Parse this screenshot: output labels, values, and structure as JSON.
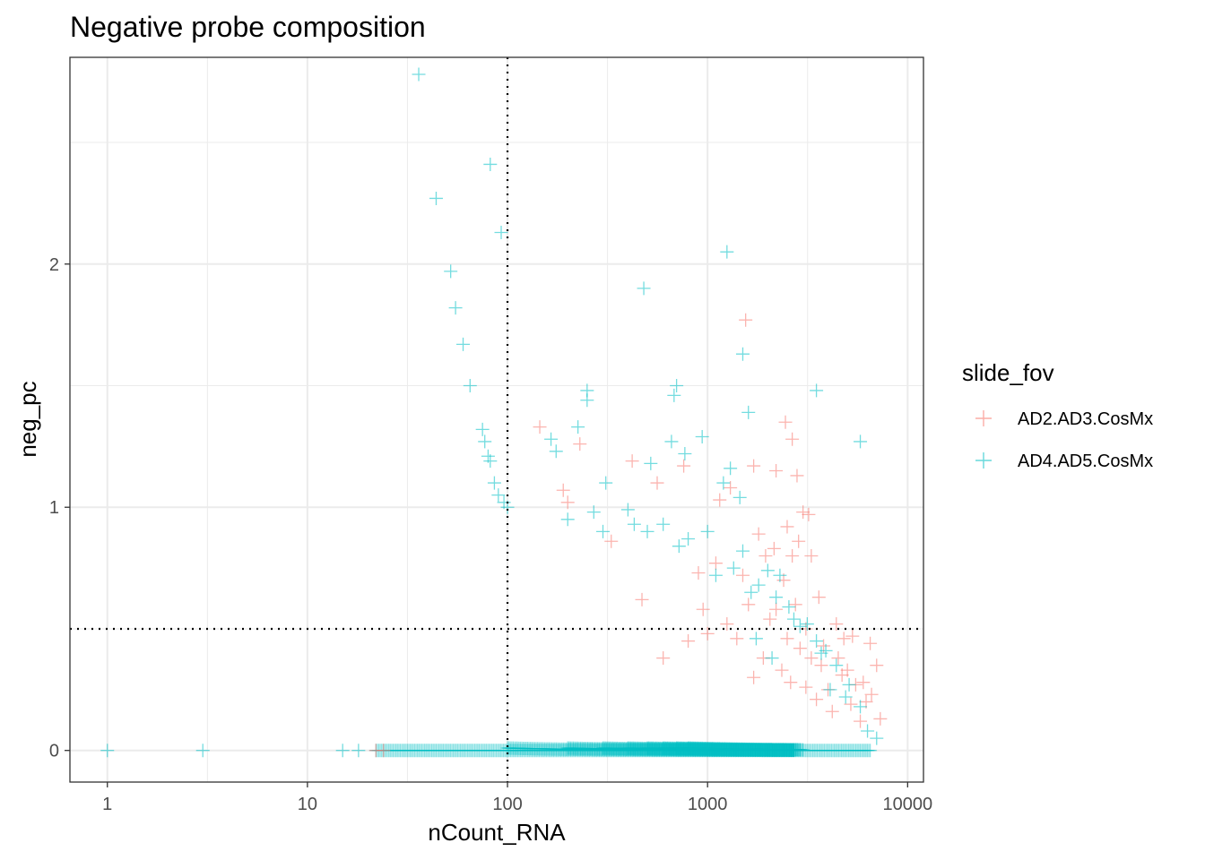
{
  "chart_data": {
    "type": "scatter",
    "title": "Negative probe composition",
    "xlabel": "nCount_RNA",
    "ylabel": "neg_pc",
    "x_scale": "log10",
    "xlim": [
      0.65,
      12000
    ],
    "ylim": [
      -0.13,
      2.85
    ],
    "x_ticks": [
      1,
      10,
      100,
      1000,
      10000
    ],
    "x_tick_labels": [
      "1",
      "10",
      "100",
      "1000",
      "10000"
    ],
    "y_ticks": [
      0,
      1,
      2
    ],
    "y_tick_labels": [
      "0",
      "1",
      "2"
    ],
    "grid": true,
    "marker": "plus",
    "reference_lines": {
      "vertical_x": 100,
      "horizontal_y": 0.5,
      "style": "dotted"
    },
    "legend": {
      "title": "slide_fov",
      "position": "right",
      "entries": [
        {
          "name": "AD2.AD3.CosMx",
          "color": "#F8766D"
        },
        {
          "name": "AD4.AD5.CosMx",
          "color": "#00BFC4"
        }
      ]
    },
    "series": [
      {
        "name": "AD2.AD3.CosMx",
        "color": "#F8766D",
        "points": [
          [
            22,
            0
          ],
          [
            24,
            0
          ],
          [
            1550,
            1.77
          ],
          [
            2450,
            1.35
          ],
          [
            2650,
            1.28
          ],
          [
            145,
            1.33
          ],
          [
            230,
            1.26
          ],
          [
            420,
            1.19
          ],
          [
            560,
            1.1
          ],
          [
            760,
            1.17
          ],
          [
            1700,
            1.17
          ],
          [
            2200,
            1.15
          ],
          [
            2800,
            1.13
          ],
          [
            1150,
            1.03
          ],
          [
            1300,
            1.08
          ],
          [
            3200,
            0.97
          ],
          [
            3000,
            0.98
          ],
          [
            2500,
            0.92
          ],
          [
            2850,
            0.86
          ],
          [
            1800,
            0.89
          ],
          [
            1950,
            0.8
          ],
          [
            2150,
            0.83
          ],
          [
            2650,
            0.8
          ],
          [
            3300,
            0.8
          ],
          [
            1100,
            0.77
          ],
          [
            900,
            0.73
          ],
          [
            1500,
            0.72
          ],
          [
            2400,
            0.7
          ],
          [
            3600,
            0.63
          ],
          [
            2750,
            0.6
          ],
          [
            4400,
            0.52
          ],
          [
            2050,
            0.54
          ],
          [
            3100,
            0.5
          ],
          [
            4800,
            0.46
          ],
          [
            5300,
            0.47
          ],
          [
            6500,
            0.44
          ],
          [
            7000,
            0.35
          ],
          [
            4700,
            0.31
          ],
          [
            5500,
            0.27
          ],
          [
            6600,
            0.23
          ],
          [
            7300,
            0.13
          ],
          [
            6200,
            0.2
          ],
          [
            5200,
            0.19
          ],
          [
            4000,
            0.25
          ],
          [
            3700,
            0.35
          ],
          [
            3300,
            0.38
          ],
          [
            2900,
            0.42
          ],
          [
            2500,
            0.46
          ],
          [
            2350,
            0.33
          ],
          [
            1900,
            0.38
          ],
          [
            1700,
            0.3
          ],
          [
            4200,
            0.16
          ],
          [
            3500,
            0.21
          ],
          [
            5800,
            0.12
          ],
          [
            2600,
            0.28
          ],
          [
            3100,
            0.26
          ],
          [
            1400,
            0.46
          ],
          [
            1250,
            0.52
          ],
          [
            1600,
            0.6
          ],
          [
            800,
            0.45
          ],
          [
            600,
            0.38
          ],
          [
            950,
            0.58
          ],
          [
            470,
            0.62
          ],
          [
            330,
            0.86
          ],
          [
            190,
            1.07
          ],
          [
            200,
            1.02
          ],
          [
            1000,
            0.48
          ],
          [
            2200,
            0.58
          ],
          [
            3800,
            0.43
          ],
          [
            4500,
            0.38
          ],
          [
            5000,
            0.33
          ],
          [
            6000,
            0.28
          ]
        ]
      },
      {
        "name": "AD4.AD5.CosMx",
        "color": "#00BFC4",
        "points": [
          [
            1,
            0
          ],
          [
            3,
            0
          ],
          [
            15,
            0
          ],
          [
            18,
            0
          ],
          [
            36,
            2.78
          ],
          [
            82,
            2.41
          ],
          [
            44,
            2.27
          ],
          [
            93,
            2.13
          ],
          [
            52,
            1.97
          ],
          [
            55,
            1.82
          ],
          [
            60,
            1.67
          ],
          [
            65,
            1.5
          ],
          [
            75,
            1.32
          ],
          [
            77,
            1.27
          ],
          [
            80,
            1.21
          ],
          [
            82,
            1.19
          ],
          [
            86,
            1.1
          ],
          [
            90,
            1.05
          ],
          [
            96,
            1.02
          ],
          [
            100,
            1.0
          ],
          [
            1250,
            2.05
          ],
          [
            480,
            1.9
          ],
          [
            250,
            1.48
          ],
          [
            250,
            1.44
          ],
          [
            700,
            1.5
          ],
          [
            680,
            1.46
          ],
          [
            1500,
            1.63
          ],
          [
            1600,
            1.39
          ],
          [
            3500,
            1.48
          ],
          [
            5800,
            1.27
          ],
          [
            165,
            1.28
          ],
          [
            175,
            1.23
          ],
          [
            225,
            1.33
          ],
          [
            940,
            1.29
          ],
          [
            770,
            1.22
          ],
          [
            520,
            1.18
          ],
          [
            1300,
            1.16
          ],
          [
            1200,
            1.1
          ],
          [
            660,
            1.27
          ],
          [
            310,
            1.1
          ],
          [
            270,
            0.98
          ],
          [
            400,
            0.99
          ],
          [
            430,
            0.93
          ],
          [
            600,
            0.93
          ],
          [
            1450,
            1.04
          ],
          [
            1000,
            0.9
          ],
          [
            720,
            0.84
          ],
          [
            1500,
            0.82
          ],
          [
            2000,
            0.74
          ],
          [
            2300,
            0.72
          ],
          [
            1800,
            0.68
          ],
          [
            2700,
            0.54
          ],
          [
            2900,
            0.51
          ],
          [
            3500,
            0.45
          ],
          [
            3900,
            0.41
          ],
          [
            4400,
            0.35
          ],
          [
            5100,
            0.27
          ],
          [
            5800,
            0.18
          ],
          [
            7000,
            0.05
          ],
          [
            6300,
            0.08
          ],
          [
            200,
            0.95
          ],
          [
            300,
            0.9
          ],
          [
            500,
            0.9
          ],
          [
            800,
            0.87
          ],
          [
            1100,
            0.72
          ],
          [
            1350,
            0.75
          ],
          [
            1650,
            0.65
          ],
          [
            2200,
            0.63
          ],
          [
            2550,
            0.59
          ],
          [
            3150,
            0.52
          ],
          [
            3700,
            0.4
          ],
          [
            4100,
            0.25
          ],
          [
            4900,
            0.22
          ],
          [
            2100,
            0.38
          ],
          [
            1750,
            0.46
          ]
        ],
        "curves": [
          {
            "k": 0,
            "x_range": [
              22,
              6500
            ]
          },
          {
            "k": 1,
            "x_range": [
              100,
              2700
            ]
          },
          {
            "k": 2,
            "x_range": [
              200,
              2700
            ]
          },
          {
            "k": 3,
            "x_range": [
              300,
              2700
            ]
          },
          {
            "k": 4,
            "x_range": [
              400,
              2700
            ]
          },
          {
            "k": 5,
            "x_range": [
              500,
              2700
            ]
          },
          {
            "k": 6,
            "x_range": [
              600,
              2800
            ]
          },
          {
            "k": 7,
            "x_range": [
              700,
              2900
            ]
          },
          {
            "k": 8,
            "x_range": [
              800,
              3000
            ]
          }
        ]
      }
    ]
  }
}
